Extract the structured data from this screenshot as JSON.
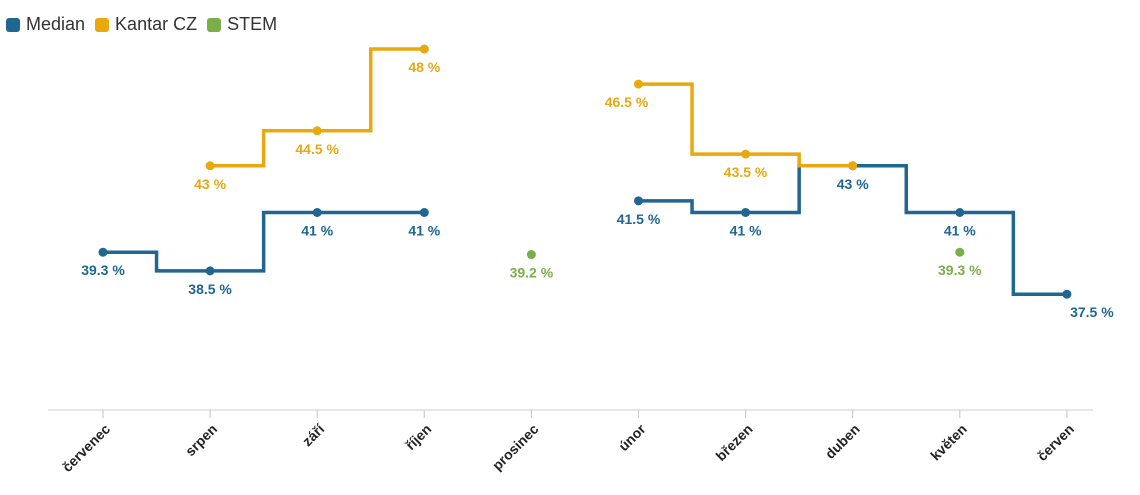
{
  "chart_data": {
    "type": "line",
    "step": true,
    "categories": [
      "červenec",
      "srpen",
      "září",
      "říjen",
      "prosinec",
      "únor",
      "březen",
      "duben",
      "květen",
      "červen"
    ],
    "ylim": [
      30,
      50
    ],
    "grid": false,
    "legend_position": "top-left",
    "series": [
      {
        "name": "Median",
        "color": "#1f6690",
        "values": [
          39.3,
          38.5,
          41,
          41,
          null,
          41.5,
          41,
          43,
          41,
          37.5
        ],
        "labels": [
          "39.3 %",
          "38.5 %",
          "41 %",
          "41 %",
          null,
          "41.5 %",
          "41 %",
          "43 %",
          "41 %",
          "37.5 %"
        ]
      },
      {
        "name": "Kantar CZ",
        "color": "#e8a80e",
        "values": [
          null,
          43,
          44.5,
          48,
          null,
          46.5,
          43.5,
          43,
          null,
          null
        ],
        "labels": [
          null,
          "43 %",
          "44.5 %",
          "48 %",
          null,
          "46.5 %",
          "43.5 %",
          null,
          null,
          null
        ]
      },
      {
        "name": "STEM",
        "color": "#7aae48",
        "values": [
          null,
          null,
          null,
          null,
          39.2,
          null,
          null,
          null,
          39.3,
          null
        ],
        "labels": [
          null,
          null,
          null,
          null,
          "39.2 %",
          null,
          null,
          null,
          "39.3 %",
          null
        ]
      }
    ]
  }
}
